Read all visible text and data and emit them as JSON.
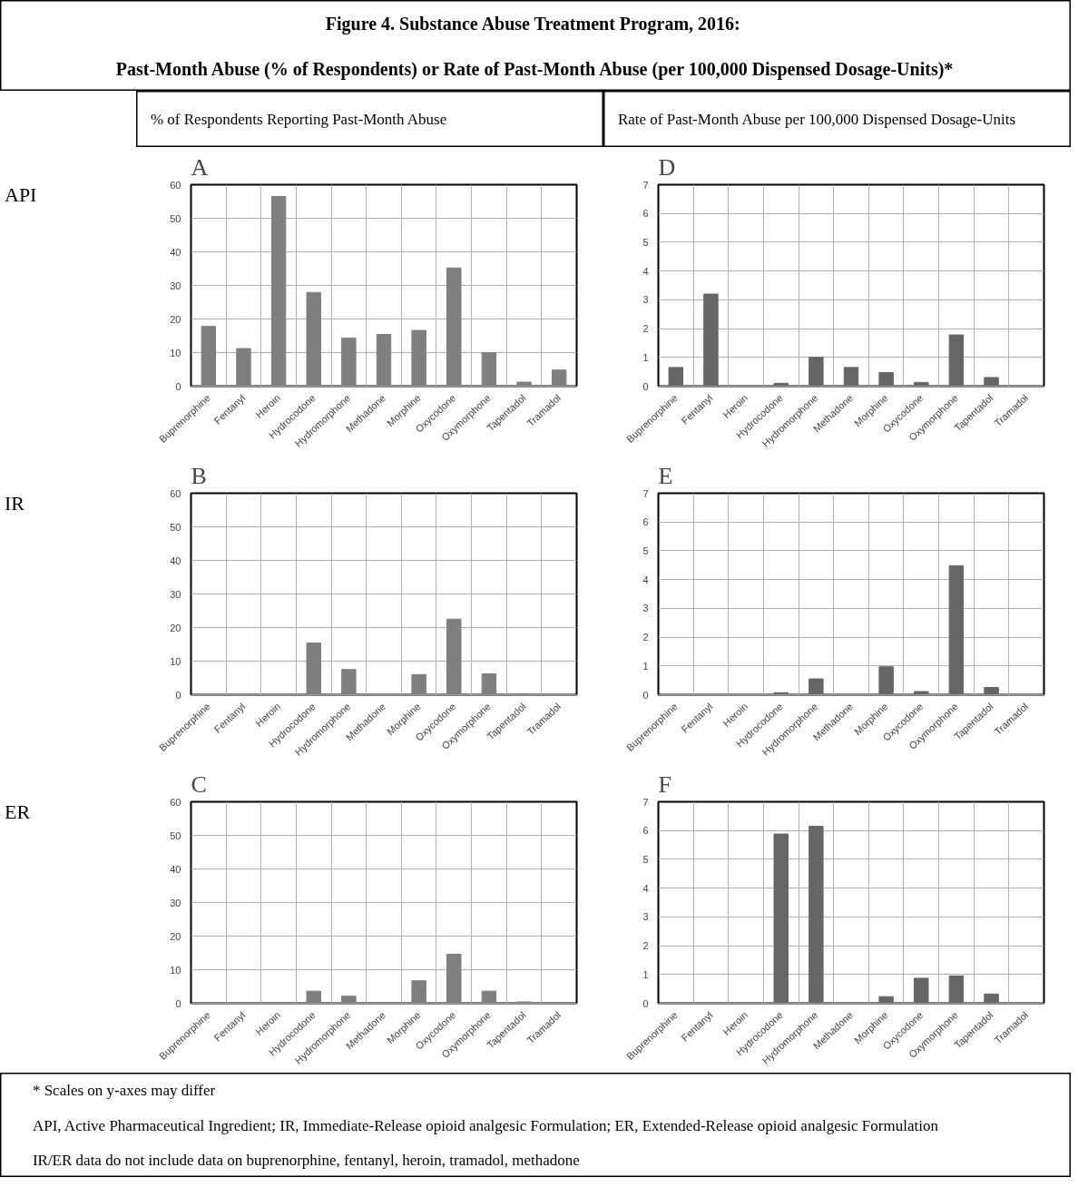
{
  "chart_data": [
    {
      "type": "other",
      "title": "Figure 4.  Substance Abuse Treatment Program, 2016:\nPast-Month Abuse (% of Respondents) or Rate of Past-Month Abuse (per 100,000 Dispensed Dosage-Units)*",
      "annotations": [
        "% of Respondents Reporting Past-Month Abuse",
        "Rate of Past-Month Abuse per 100,000 Dispensed Dosage-Units"
      ]
    },
    {
      "type": "bar",
      "title": "A",
      "annotations": [
        "API"
      ],
      "categories": [
        "Buprenorphine",
        "Fentanyl",
        "Heroin",
        "Hydrocodone",
        "Hydromorphone",
        "Methadone",
        "Morphine",
        "Oxycodone",
        "Oxymorphone",
        "Tapentadol",
        "Tramadol"
      ],
      "color": "#7f7f7f",
      "values": [
        17.8,
        11.2,
        56.5,
        27.9,
        14.3,
        15.4,
        16.6,
        35.2,
        10.0,
        1.2,
        4.8
      ],
      "ylim": [
        0,
        60
      ],
      "yticks": [
        0,
        10,
        20,
        30,
        40,
        50,
        60
      ],
      "grid": true
    },
    {
      "type": "bar",
      "title": "D",
      "categories": [
        "Buprenorphine",
        "Fentanyl",
        "Heroin",
        "Hydrocodone",
        "Hydromorphone",
        "Methadone",
        "Morphine",
        "Oxycodone",
        "Oxymorphone",
        "Tapentadol",
        "Tramadol"
      ],
      "color": "#666666",
      "values": [
        0.65,
        3.2,
        null,
        0.1,
        1.0,
        0.65,
        0.47,
        0.13,
        1.78,
        0.3,
        null
      ],
      "ylim": [
        0,
        7
      ],
      "yticks": [
        0,
        1,
        2,
        3,
        4,
        5,
        6,
        7
      ],
      "grid": true
    },
    {
      "type": "bar",
      "title": "B",
      "annotations": [
        "IR"
      ],
      "categories": [
        "Buprenorphine",
        "Fentanyl",
        "Heroin",
        "Hydrocodone",
        "Hydromorphone",
        "Methadone",
        "Morphine",
        "Oxycodone",
        "Oxymorphone",
        "Tapentadol",
        "Tramadol"
      ],
      "color": "#7f7f7f",
      "values": [
        null,
        null,
        null,
        15.4,
        7.5,
        null,
        6.0,
        22.5,
        6.2,
        0.3,
        null
      ],
      "ylim": [
        0,
        60
      ],
      "yticks": [
        0,
        10,
        20,
        30,
        40,
        50,
        60
      ],
      "grid": true
    },
    {
      "type": "bar",
      "title": "E",
      "categories": [
        "Buprenorphine",
        "Fentanyl",
        "Heroin",
        "Hydrocodone",
        "Hydromorphone",
        "Methadone",
        "Morphine",
        "Oxycodone",
        "Oxymorphone",
        "Tapentadol",
        "Tramadol"
      ],
      "color": "#666666",
      "values": [
        null,
        null,
        null,
        0.07,
        0.55,
        null,
        0.97,
        0.11,
        4.48,
        0.25,
        null
      ],
      "ylim": [
        0,
        7
      ],
      "yticks": [
        0,
        1,
        2,
        3,
        4,
        5,
        6,
        7
      ],
      "grid": true
    },
    {
      "type": "bar",
      "title": "C",
      "annotations": [
        "ER"
      ],
      "categories": [
        "Buprenorphine",
        "Fentanyl",
        "Heroin",
        "Hydrocodone",
        "Hydromorphone",
        "Methadone",
        "Morphine",
        "Oxycodone",
        "Oxymorphone",
        "Tapentadol",
        "Tramadol"
      ],
      "color": "#7f7f7f",
      "values": [
        null,
        null,
        null,
        3.6,
        2.1,
        null,
        6.7,
        14.6,
        3.6,
        0.4,
        null
      ],
      "ylim": [
        0,
        60
      ],
      "yticks": [
        0,
        10,
        20,
        30,
        40,
        50,
        60
      ],
      "grid": true
    },
    {
      "type": "bar",
      "title": "F",
      "categories": [
        "Buprenorphine",
        "Fentanyl",
        "Heroin",
        "Hydrocodone",
        "Hydromorphone",
        "Methadone",
        "Morphine",
        "Oxycodone",
        "Oxymorphone",
        "Tapentadol",
        "Tramadol"
      ],
      "color": "#666666",
      "values": [
        null,
        null,
        null,
        5.88,
        6.15,
        null,
        0.23,
        0.87,
        0.95,
        0.32,
        null
      ],
      "ylim": [
        0,
        7
      ],
      "yticks": [
        0,
        1,
        2,
        3,
        4,
        5,
        6,
        7
      ],
      "grid": true
    },
    {
      "type": "other",
      "annotations": [
        "* Scales on y-axes may differ",
        "API, Active Pharmaceutical Ingredient; IR, Immediate-Release opioid analgesic Formulation; ER, Extended-Release opioid analgesic Formulation",
        "IR/ER data do not include data on buprenorphine, fentanyl, heroin, tramadol, methadone"
      ]
    }
  ]
}
